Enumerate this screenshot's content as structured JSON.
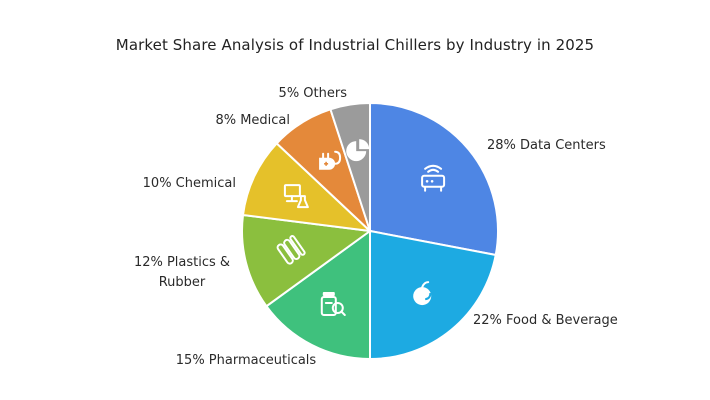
{
  "chart_data": {
    "type": "pie",
    "title": "Market Share Analysis of Industrial Chillers by Industry in 2025",
    "slices": [
      {
        "label": "Data Centers",
        "value": 28,
        "display": "28% Data Centers",
        "color": "#4E86E4",
        "icon": "server-wifi-icon"
      },
      {
        "label": "Food & Beverage",
        "value": 22,
        "display": "22% Food & Beverage",
        "color": "#1DAAE2",
        "icon": "fruit-icon"
      },
      {
        "label": "Pharmaceuticals",
        "value": 15,
        "display": "15% Pharmaceuticals",
        "color": "#3FC17D",
        "icon": "medicine-jar-icon"
      },
      {
        "label": "Plastics & Rubber",
        "value": 12,
        "display": "12% Plastics & Rubber",
        "color": "#8BBF3E",
        "icon": "plastic-tubes-icon"
      },
      {
        "label": "Chemical",
        "value": 10,
        "display": "10% Chemical",
        "color": "#E5C12A",
        "icon": "lab-computer-icon"
      },
      {
        "label": "Medical",
        "value": 8,
        "display": "8% Medical",
        "color": "#E4893A",
        "icon": "medical-plug-icon"
      },
      {
        "label": "Others",
        "value": 5,
        "display": "5% Others",
        "color": "#9B9B9B",
        "icon": "pie-chart-icon"
      }
    ]
  }
}
